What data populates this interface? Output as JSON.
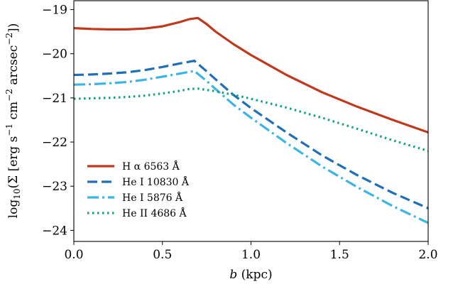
{
  "chart_data": {
    "type": "line",
    "xlabel": "b (kpc)",
    "ylabel": "log10(Σ [erg s−1 cm−2 arcsec−2])",
    "xlim": [
      0.0,
      2.0
    ],
    "ylim": [
      -24.25,
      -18.8
    ],
    "xticks": [
      0.0,
      0.5,
      1.0,
      1.5,
      2.0
    ],
    "xtick_labels": [
      "0.0",
      "0.5",
      "1.0",
      "1.5",
      "2.0"
    ],
    "yticks": [
      -24,
      -23,
      -22,
      -21,
      -20,
      -19
    ],
    "ytick_labels": [
      "−24",
      "−23",
      "−22",
      "−21",
      "−20",
      "−19"
    ],
    "grid": false,
    "legend_position": "lower-left",
    "series": [
      {
        "name": "H α 6563 Å",
        "color": "#c0391c",
        "dash": "solid",
        "x": [
          0.0,
          0.1,
          0.2,
          0.3,
          0.4,
          0.5,
          0.6,
          0.65,
          0.7,
          0.75,
          0.8,
          0.9,
          1.0,
          1.2,
          1.4,
          1.6,
          1.8,
          2.0
        ],
        "y": [
          -19.42,
          -19.44,
          -19.45,
          -19.45,
          -19.43,
          -19.38,
          -19.28,
          -19.22,
          -19.19,
          -19.33,
          -19.5,
          -19.78,
          -20.03,
          -20.48,
          -20.87,
          -21.2,
          -21.5,
          -21.78
        ]
      },
      {
        "name": "He I 10830 Å",
        "color": "#1e6fb5",
        "dash": "dashed",
        "x": [
          0.0,
          0.1,
          0.2,
          0.3,
          0.4,
          0.5,
          0.6,
          0.68,
          0.75,
          0.8,
          0.9,
          1.0,
          1.2,
          1.4,
          1.6,
          1.8,
          2.0
        ],
        "y": [
          -20.48,
          -20.47,
          -20.45,
          -20.42,
          -20.37,
          -20.3,
          -20.22,
          -20.16,
          -20.4,
          -20.58,
          -20.93,
          -21.23,
          -21.78,
          -22.3,
          -22.75,
          -23.15,
          -23.5
        ]
      },
      {
        "name": "He I 5876 Å",
        "color": "#3cb4e6",
        "dash": "dashdot",
        "x": [
          0.0,
          0.1,
          0.2,
          0.3,
          0.4,
          0.5,
          0.6,
          0.68,
          0.75,
          0.8,
          0.9,
          1.0,
          1.2,
          1.4,
          1.6,
          1.8,
          2.0
        ],
        "y": [
          -20.7,
          -20.69,
          -20.67,
          -20.64,
          -20.59,
          -20.52,
          -20.45,
          -20.39,
          -20.62,
          -20.8,
          -21.15,
          -21.45,
          -22.02,
          -22.55,
          -23.02,
          -23.45,
          -23.83
        ]
      },
      {
        "name": "He II 4686 Å",
        "color": "#14a085",
        "dash": "dotted",
        "x": [
          0.0,
          0.1,
          0.2,
          0.3,
          0.4,
          0.5,
          0.6,
          0.65,
          0.7,
          0.8,
          0.9,
          1.0,
          1.2,
          1.4,
          1.6,
          1.8,
          2.0
        ],
        "y": [
          -21.02,
          -21.01,
          -21.0,
          -20.98,
          -20.95,
          -20.9,
          -20.84,
          -20.8,
          -20.79,
          -20.85,
          -20.93,
          -21.02,
          -21.22,
          -21.45,
          -21.7,
          -21.96,
          -22.2
        ]
      }
    ]
  }
}
